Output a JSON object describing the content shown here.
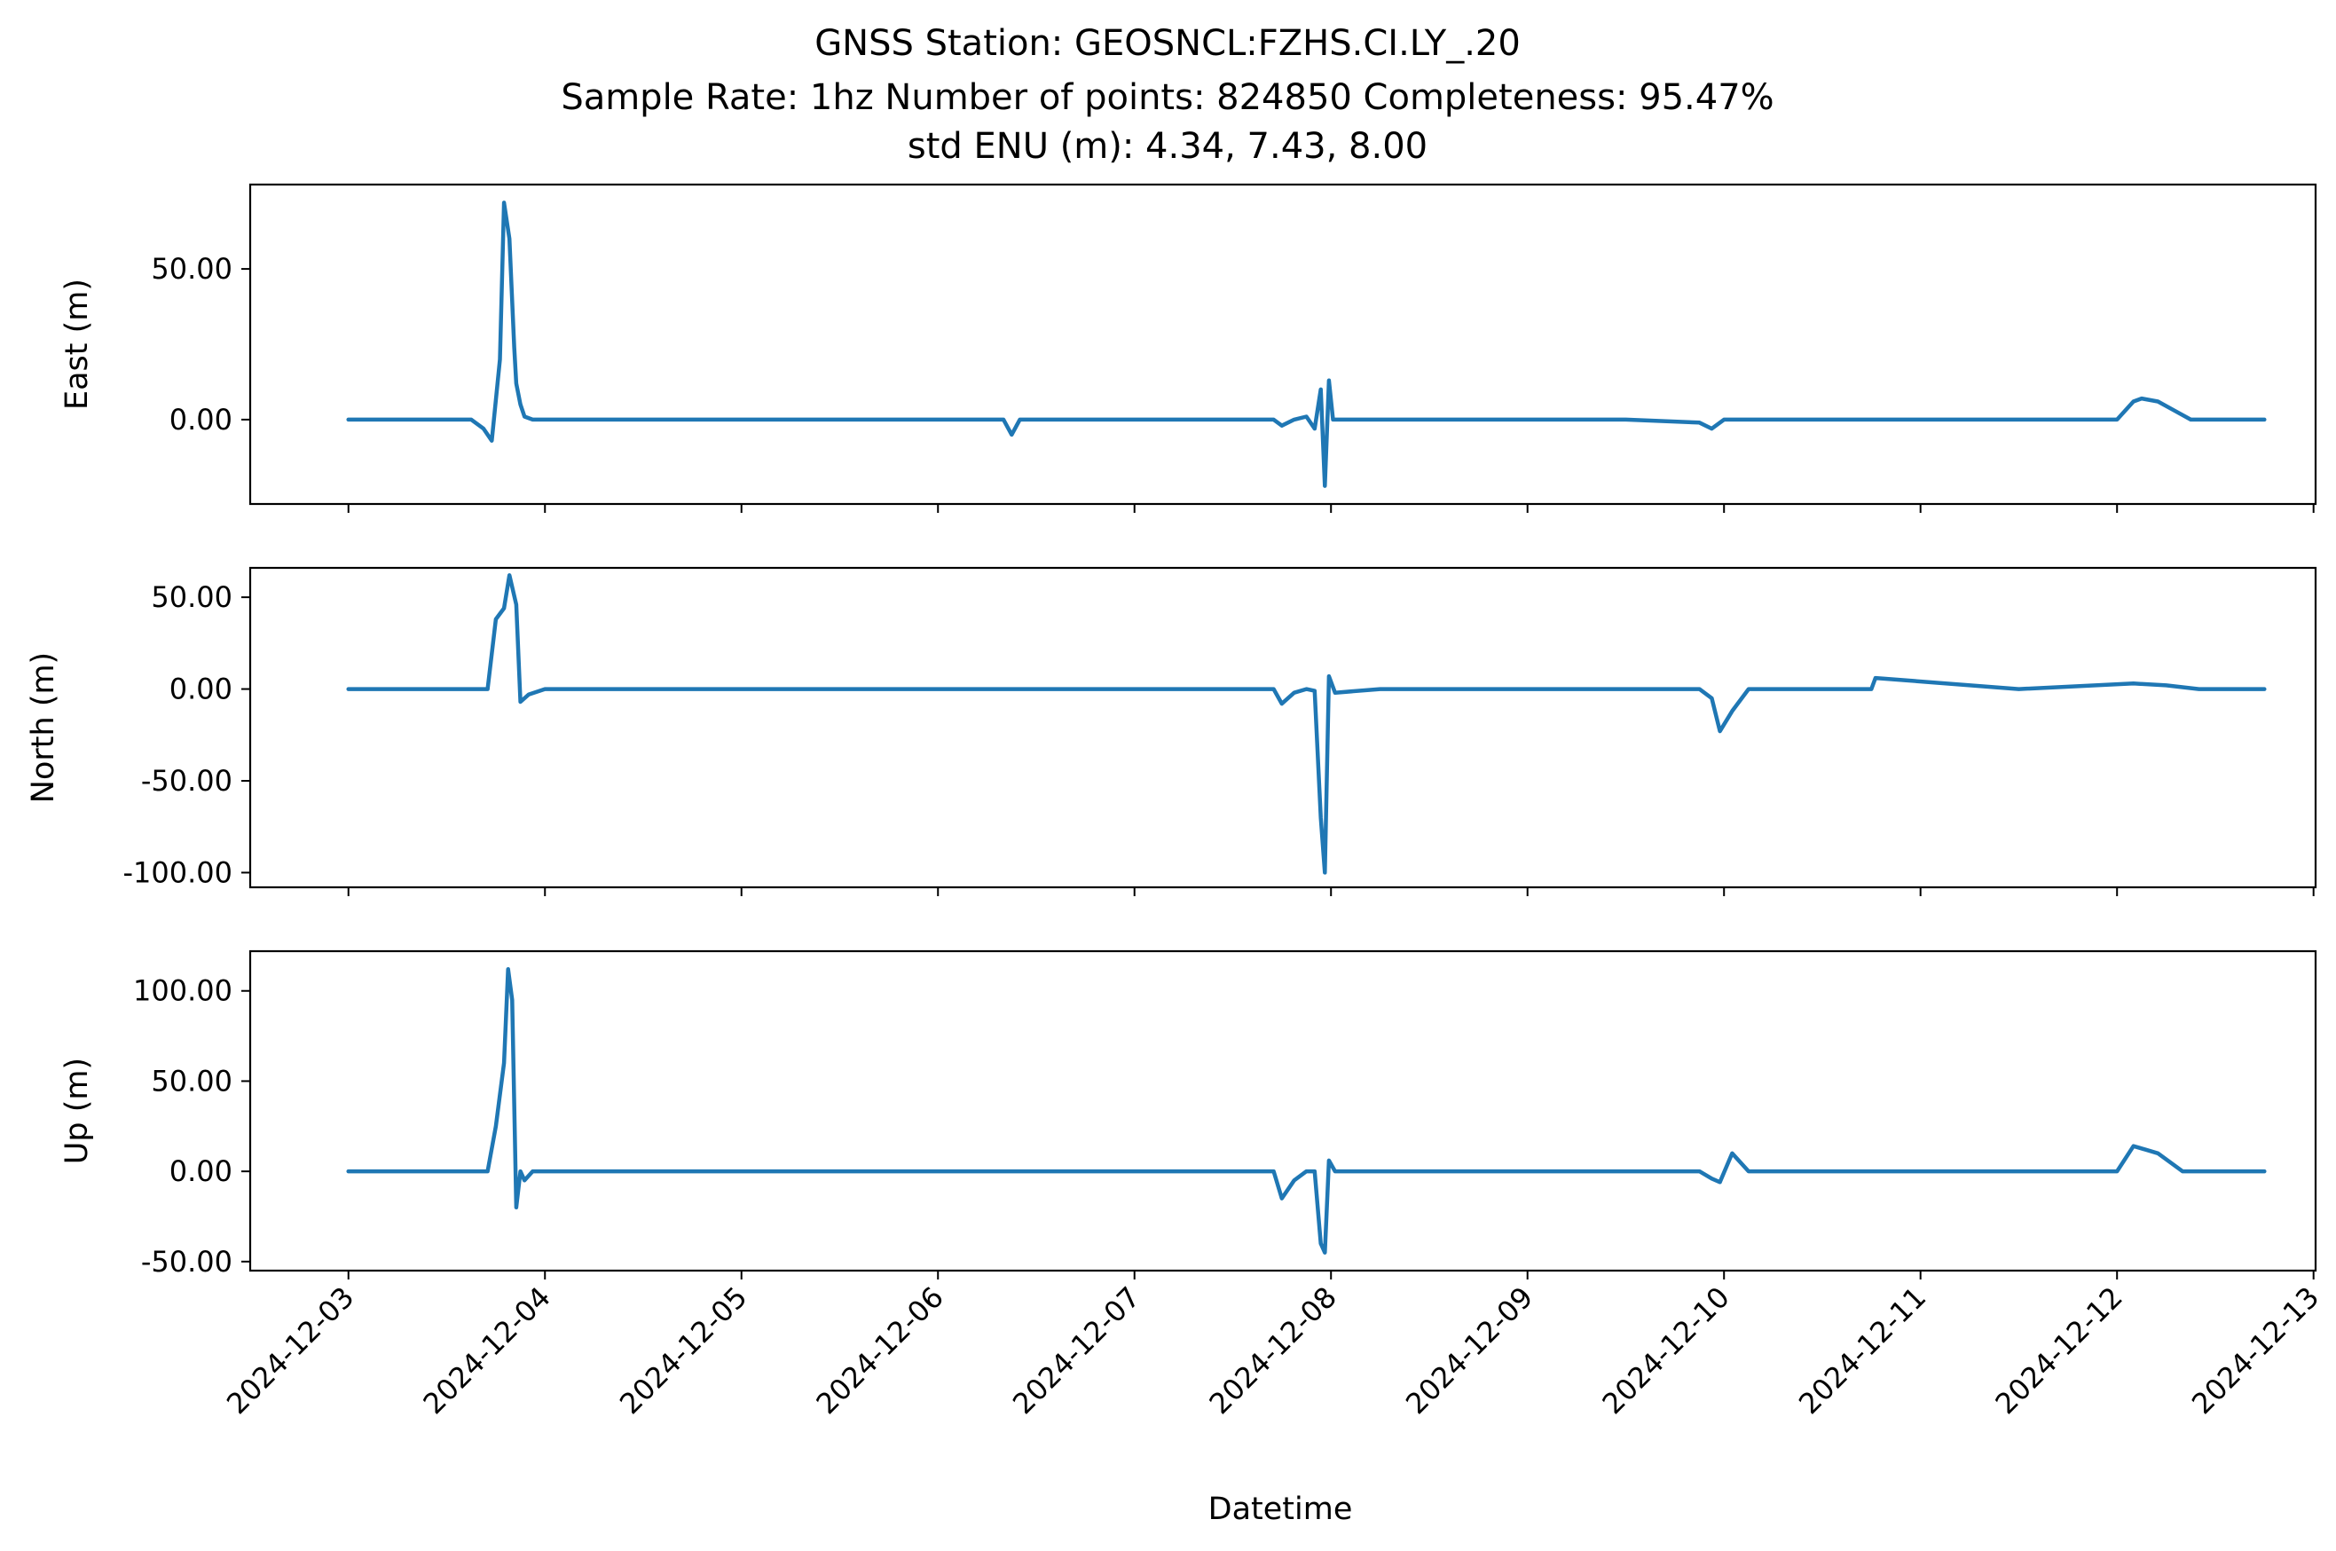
{
  "chart_data": {
    "type": "line",
    "title_lines": [
      "GNSS Station: GEOSNCL:FZHS.CI.LY_.20",
      "Sample Rate: 1hz   Number of points: 824850    Completeness:  95.47%",
      "std ENU (m):  4.34, 7.43, 8.00"
    ],
    "xlabel": "Datetime",
    "x_ticks": [
      "2024-12-03",
      "2024-12-04",
      "2024-12-05",
      "2024-12-06",
      "2024-12-07",
      "2024-12-08",
      "2024-12-09",
      "2024-12-10",
      "2024-12-11",
      "2024-12-12",
      "2024-12-13"
    ],
    "xlim": [
      "2024-12-02T12:00",
      "2024-12-13T00:15"
    ],
    "line_color": "#1f77b4",
    "grid": false,
    "panels": [
      {
        "name": "east",
        "ylabel": "East (m)",
        "ylim": [
          -28,
          78
        ],
        "y_ticks": [
          0,
          50
        ],
        "y_tick_labels": [
          "0.00",
          "50.00"
        ],
        "x": [
          "2024-12-03T00:00",
          "2024-12-03T09:00",
          "2024-12-03T15:00",
          "2024-12-03T16:30",
          "2024-12-03T17:30",
          "2024-12-03T18:30",
          "2024-12-03T19:00",
          "2024-12-03T19:40",
          "2024-12-03T20:15",
          "2024-12-03T20:30",
          "2024-12-03T21:00",
          "2024-12-03T21:30",
          "2024-12-03T22:30",
          "2024-12-03T23:30",
          "2024-12-04T12:00",
          "2024-12-05T06:00",
          "2024-12-06T08:00",
          "2024-12-06T09:00",
          "2024-12-06T10:00",
          "2024-12-07T12:00",
          "2024-12-07T17:00",
          "2024-12-07T18:00",
          "2024-12-07T19:30",
          "2024-12-07T21:00",
          "2024-12-07T22:00",
          "2024-12-07T22:45",
          "2024-12-07T23:15",
          "2024-12-07T23:45",
          "2024-12-08T00:15",
          "2024-12-08T01:30",
          "2024-12-08T06:00",
          "2024-12-08T13:00",
          "2024-12-09T12:00",
          "2024-12-09T21:00",
          "2024-12-09T22:30",
          "2024-12-10T00:00",
          "2024-12-10T12:00",
          "2024-12-11T12:00",
          "2024-12-12T00:00",
          "2024-12-12T02:00",
          "2024-12-12T03:00",
          "2024-12-12T05:00",
          "2024-12-12T07:00",
          "2024-12-12T09:00",
          "2024-12-12T14:00",
          "2024-12-12T18:00"
        ],
        "y": [
          0,
          0,
          0,
          -3,
          -7,
          20,
          72,
          60,
          24,
          12,
          5,
          1,
          0,
          0,
          0,
          0,
          0,
          -5,
          0,
          0,
          0,
          -2,
          0,
          1,
          -3,
          10,
          -22,
          13,
          0,
          0,
          0,
          0,
          0,
          -1,
          -3,
          0,
          0,
          0,
          0,
          6,
          7,
          6,
          3,
          0,
          0,
          0
        ]
      },
      {
        "name": "north",
        "ylabel": "North (m)",
        "ylim": [
          -108,
          66
        ],
        "y_ticks": [
          -100,
          -50,
          0,
          50
        ],
        "y_tick_labels": [
          "-100.00",
          "-50.00",
          "0.00",
          "50.00"
        ],
        "x": [
          "2024-12-03T00:00",
          "2024-12-03T12:00",
          "2024-12-03T17:00",
          "2024-12-03T18:00",
          "2024-12-03T19:00",
          "2024-12-03T19:40",
          "2024-12-03T20:30",
          "2024-12-03T21:00",
          "2024-12-03T22:00",
          "2024-12-04T00:00",
          "2024-12-05T00:00",
          "2024-12-07T17:00",
          "2024-12-07T18:00",
          "2024-12-07T19:30",
          "2024-12-07T21:00",
          "2024-12-07T22:00",
          "2024-12-07T22:45",
          "2024-12-07T23:15",
          "2024-12-07T23:45",
          "2024-12-08T00:30",
          "2024-12-08T06:00",
          "2024-12-09T12:00",
          "2024-12-09T21:00",
          "2024-12-09T22:30",
          "2024-12-09T23:30",
          "2024-12-10T01:00",
          "2024-12-10T03:00",
          "2024-12-10T06:00",
          "2024-12-10T18:00",
          "2024-12-10T18:30",
          "2024-12-11T12:00",
          "2024-12-12T02:00",
          "2024-12-12T06:00",
          "2024-12-12T10:00",
          "2024-12-12T18:00"
        ],
        "y": [
          0,
          0,
          0,
          38,
          44,
          62,
          46,
          -7,
          -3,
          0,
          0,
          0,
          -8,
          -2,
          0,
          -1,
          -70,
          -100,
          7,
          -2,
          0,
          0,
          0,
          -5,
          -23,
          -12,
          0,
          0,
          0,
          6,
          0,
          3,
          2,
          0,
          0
        ]
      },
      {
        "name": "up",
        "ylabel": "Up (m)",
        "ylim": [
          -55,
          122
        ],
        "y_ticks": [
          -50,
          0,
          50,
          100
        ],
        "y_tick_labels": [
          "-50.00",
          "0.00",
          "50.00",
          "100.00"
        ],
        "x": [
          "2024-12-03T00:00",
          "2024-12-03T12:00",
          "2024-12-03T17:00",
          "2024-12-03T18:00",
          "2024-12-03T19:00",
          "2024-12-03T19:30",
          "2024-12-03T20:00",
          "2024-12-03T20:30",
          "2024-12-03T21:00",
          "2024-12-03T21:30",
          "2024-12-03T22:30",
          "2024-12-04T00:00",
          "2024-12-07T17:00",
          "2024-12-07T18:00",
          "2024-12-07T19:30",
          "2024-12-07T21:00",
          "2024-12-07T22:00",
          "2024-12-07T22:45",
          "2024-12-07T23:15",
          "2024-12-07T23:45",
          "2024-12-08T00:30",
          "2024-12-08T06:00",
          "2024-12-09T12:00",
          "2024-12-09T21:00",
          "2024-12-09T22:30",
          "2024-12-09T23:30",
          "2024-12-10T01:00",
          "2024-12-10T03:00",
          "2024-12-10T08:00",
          "2024-12-12T00:00",
          "2024-12-12T02:00",
          "2024-12-12T03:30",
          "2024-12-12T05:00",
          "2024-12-12T08:00",
          "2024-12-12T18:00"
        ],
        "y": [
          0,
          0,
          0,
          25,
          60,
          112,
          95,
          -20,
          0,
          -5,
          0,
          0,
          0,
          -15,
          -5,
          0,
          0,
          -40,
          -45,
          6,
          0,
          0,
          0,
          0,
          -4,
          -6,
          10,
          0,
          0,
          0,
          14,
          12,
          10,
          0,
          0
        ]
      }
    ]
  }
}
